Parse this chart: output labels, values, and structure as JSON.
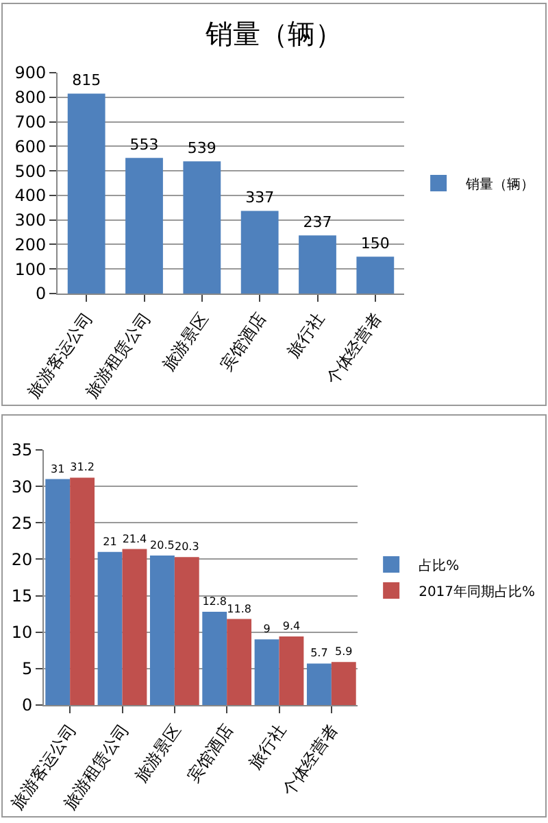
{
  "chart_data": [
    {
      "type": "bar",
      "title": "销量（辆）",
      "categories": [
        "旅游客运公司",
        "旅游租赁公司",
        "旅游景区",
        "宾馆酒店",
        "旅行社",
        "个体经营者"
      ],
      "series": [
        {
          "name": "销量（辆）",
          "color": "#4f81bd",
          "values": [
            815,
            553,
            539,
            337,
            237,
            150
          ]
        }
      ],
      "ylim": [
        0,
        900
      ],
      "yticks": [
        0,
        100,
        200,
        300,
        400,
        500,
        600,
        700,
        800,
        900
      ],
      "grid": "y",
      "legend": "right",
      "data_labels": true
    },
    {
      "type": "bar",
      "categories": [
        "旅游客运公司",
        "旅游租赁公司",
        "旅游景区",
        "宾馆酒店",
        "旅行社",
        "个体经营者"
      ],
      "series": [
        {
          "name": "占比%",
          "color": "#4f81bd",
          "values": [
            31,
            21,
            20.5,
            12.8,
            9,
            5.7
          ]
        },
        {
          "name": "2017年同期占比%",
          "color": "#c0504d",
          "values": [
            31.2,
            21.4,
            20.3,
            11.8,
            9.4,
            5.9
          ]
        }
      ],
      "ylim": [
        0,
        35
      ],
      "yticks": [
        0,
        5,
        10,
        15,
        20,
        25,
        30,
        35
      ],
      "grid": "y",
      "legend": "right",
      "data_labels": true
    }
  ]
}
